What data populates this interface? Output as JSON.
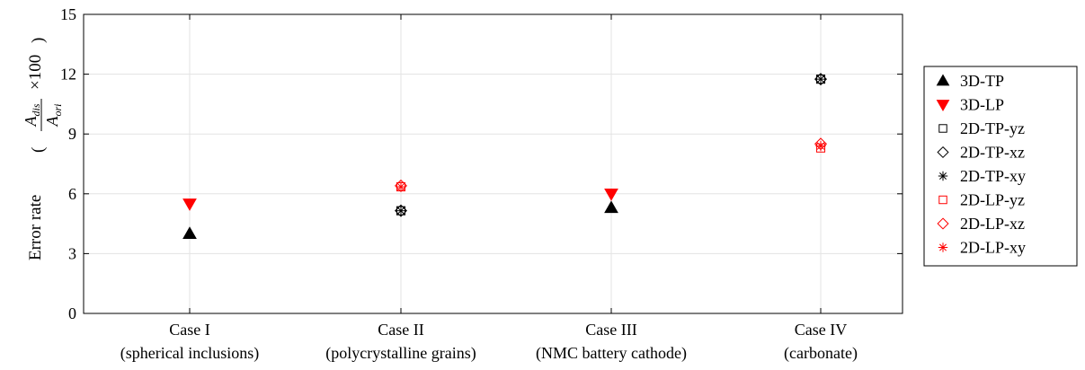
{
  "chart_data": {
    "type": "scatter",
    "categories": [
      {
        "line1": "Case I",
        "line2": "(spherical inclusions)"
      },
      {
        "line1": "Case II",
        "line2": "(polycrystalline grains)"
      },
      {
        "line1": "Case III",
        "line2": "(NMC battery cathode)"
      },
      {
        "line1": "Case IV",
        "line2": "(carbonate)"
      }
    ],
    "ylabel": {
      "prefix": "Error rate",
      "numerator_main": "A",
      "numerator_sub": "dis",
      "denominator_main": "A",
      "denominator_sub": "ori",
      "suffix": "×100"
    },
    "ylim": [
      0,
      15
    ],
    "yticks": [
      0,
      3,
      6,
      9,
      12,
      15
    ],
    "ytick_labels": [
      "0",
      "3",
      "6",
      "9",
      "12",
      "15"
    ],
    "grid": true,
    "legend_position": "right-outside",
    "series": [
      {
        "name": "3D-TP",
        "marker": "triangle-up",
        "color": "#000000",
        "filled": true,
        "values": [
          4.0,
          null,
          5.3,
          null
        ]
      },
      {
        "name": "3D-LP",
        "marker": "triangle-down",
        "color": "#ff0000",
        "filled": true,
        "values": [
          5.5,
          null,
          6.0,
          null
        ]
      },
      {
        "name": "2D-TP-yz",
        "marker": "square",
        "color": "#000000",
        "filled": false,
        "values": [
          null,
          5.15,
          null,
          11.75
        ]
      },
      {
        "name": "2D-TP-xz",
        "marker": "diamond",
        "color": "#000000",
        "filled": false,
        "values": [
          null,
          5.15,
          null,
          11.75
        ]
      },
      {
        "name": "2D-TP-xy",
        "marker": "asterisk",
        "color": "#000000",
        "filled": false,
        "values": [
          null,
          5.15,
          null,
          11.75
        ]
      },
      {
        "name": "2D-LP-yz",
        "marker": "square",
        "color": "#ff0000",
        "filled": false,
        "values": [
          null,
          6.35,
          null,
          8.3
        ]
      },
      {
        "name": "2D-LP-xz",
        "marker": "diamond",
        "color": "#ff0000",
        "filled": false,
        "values": [
          null,
          6.4,
          null,
          8.5
        ]
      },
      {
        "name": "2D-LP-xy",
        "marker": "asterisk",
        "color": "#ff0000",
        "filled": false,
        "values": [
          null,
          6.35,
          null,
          8.4
        ]
      }
    ]
  }
}
